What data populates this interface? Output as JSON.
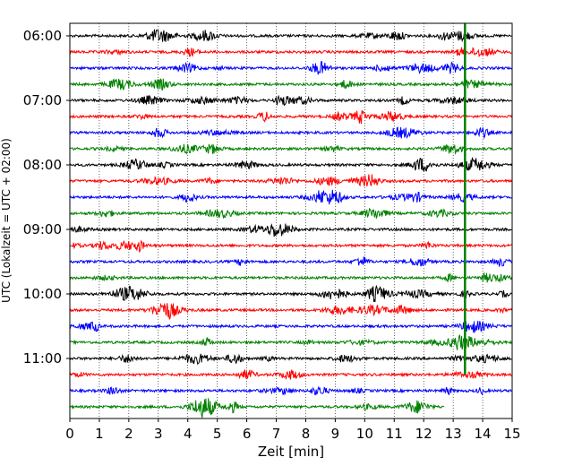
{
  "chart_data": {
    "type": "line",
    "title": "",
    "xlabel": "Zeit  [min]",
    "ylabel": "UTC (Lokalzeit = UTC + 02:00)",
    "xlim": [
      0,
      15
    ],
    "x_ticks": [
      "0",
      "1",
      "2",
      "3",
      "4",
      "5",
      "6",
      "7",
      "8",
      "9",
      "10",
      "11",
      "12",
      "13",
      "14",
      "15"
    ],
    "y_ticks": [
      "06:00",
      "07:00",
      "08:00",
      "09:00",
      "10:00",
      "11:00"
    ],
    "grid": "vertical dotted",
    "trace_colors": [
      "#000000",
      "#ff0000",
      "#0000ff",
      "#008000"
    ],
    "traces": [
      {
        "start": "06:00",
        "color": "#000000"
      },
      {
        "start": "06:15",
        "color": "#ff0000"
      },
      {
        "start": "06:30",
        "color": "#0000ff"
      },
      {
        "start": "06:45",
        "color": "#008000"
      },
      {
        "start": "07:00",
        "color": "#000000"
      },
      {
        "start": "07:15",
        "color": "#ff0000"
      },
      {
        "start": "07:30",
        "color": "#0000ff"
      },
      {
        "start": "07:45",
        "color": "#008000"
      },
      {
        "start": "08:00",
        "color": "#000000"
      },
      {
        "start": "08:15",
        "color": "#ff0000"
      },
      {
        "start": "08:30",
        "color": "#0000ff"
      },
      {
        "start": "08:45",
        "color": "#008000"
      },
      {
        "start": "09:00",
        "color": "#000000"
      },
      {
        "start": "09:15",
        "color": "#ff0000"
      },
      {
        "start": "09:30",
        "color": "#0000ff"
      },
      {
        "start": "09:45",
        "color": "#008000"
      },
      {
        "start": "10:00",
        "color": "#000000"
      },
      {
        "start": "10:15",
        "color": "#ff0000"
      },
      {
        "start": "10:30",
        "color": "#0000ff"
      },
      {
        "start": "10:45",
        "color": "#008000"
      },
      {
        "start": "11:00",
        "color": "#000000"
      },
      {
        "start": "11:15",
        "color": "#ff0000"
      },
      {
        "start": "11:30",
        "color": "#0000ff"
      },
      {
        "start": "11:45",
        "color": "#008000",
        "end_min": 12.7
      }
    ],
    "marker": {
      "x_min": 13.4,
      "from": "06:00",
      "to": "11:15",
      "color": "#008000"
    }
  }
}
